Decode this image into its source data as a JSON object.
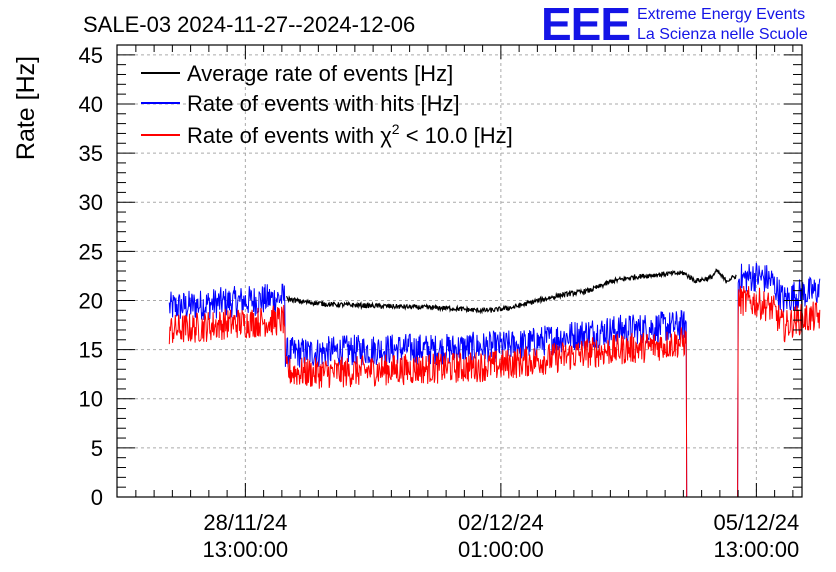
{
  "chart_data": {
    "type": "line",
    "title": "SALE-03 2024-11-27--2024-12-06",
    "ylabel": "Rate [Hz]",
    "xlabel": "",
    "ylim": [
      0,
      46
    ],
    "yticks": [
      0,
      5,
      10,
      15,
      20,
      25,
      30,
      35,
      40,
      45
    ],
    "x_unit": "hours since 2024-11-27 00:00",
    "xlim": [
      -5.2,
      220
    ],
    "xticks": [
      {
        "x": 37,
        "line1": "28/11/24",
        "line2": "13:00:00"
      },
      {
        "x": 121,
        "line1": "02/12/24",
        "line2": "01:00:00"
      },
      {
        "x": 205,
        "line1": "05/12/24",
        "line2": "13:00:00"
      }
    ],
    "grid": true,
    "legend": [
      {
        "label": "Average rate of events [Hz]",
        "color": "#000000"
      },
      {
        "label": "Rate of events with hits [Hz]",
        "color": "#0000ff"
      },
      {
        "label_prefix": "Rate of events with ",
        "label_symbol": "χ",
        "label_sup": "2",
        "label_suffix": " < 10.0 [Hz]",
        "color": "#ff0000"
      }
    ],
    "series": [
      {
        "name": "Average rate of events [Hz]",
        "color": "#000000",
        "noise": 0.25,
        "points": [
          [
            50.5,
            20.2
          ],
          [
            55,
            19.9
          ],
          [
            65,
            19.6
          ],
          [
            75,
            19.5
          ],
          [
            85,
            19.4
          ],
          [
            95,
            19.3
          ],
          [
            105,
            19.2
          ],
          [
            113,
            19.0
          ],
          [
            118,
            19.0
          ],
          [
            125,
            19.3
          ],
          [
            132,
            19.9
          ],
          [
            140,
            20.5
          ],
          [
            150,
            21.0
          ],
          [
            158,
            22.0
          ],
          [
            165,
            22.4
          ],
          [
            175,
            22.7
          ],
          [
            181,
            22.8
          ],
          [
            185,
            22.0
          ],
          [
            190,
            22.3
          ],
          [
            192,
            23.0
          ],
          [
            195,
            22.0
          ],
          [
            198.5,
            22.5
          ]
        ]
      },
      {
        "name": "Rate of events with hits [Hz]",
        "color": "#0000ff",
        "noise": 1.6,
        "points": [
          [
            12,
            19.3
          ],
          [
            20,
            19.5
          ],
          [
            30,
            19.8
          ],
          [
            40,
            20.0
          ],
          [
            50,
            20.3
          ],
          [
            50.5,
            14.7
          ],
          [
            60,
            14.7
          ],
          [
            70,
            14.9
          ],
          [
            80,
            15.0
          ],
          [
            90,
            15.1
          ],
          [
            100,
            15.0
          ],
          [
            110,
            15.2
          ],
          [
            120,
            15.3
          ],
          [
            130,
            15.6
          ],
          [
            140,
            16.2
          ],
          [
            150,
            16.7
          ],
          [
            160,
            17.0
          ],
          [
            170,
            17.2
          ],
          [
            182,
            17.5
          ],
          [
            182.5,
            0
          ],
          [
            199,
            0
          ],
          [
            199.5,
            22.2
          ],
          [
            205,
            22.5
          ],
          [
            210,
            22.0
          ],
          [
            214,
            20.0
          ],
          [
            218,
            20.6
          ],
          [
            226,
            21.0
          ]
        ]
      },
      {
        "name": "Rate of events with χ2 < 10.0 [Hz]",
        "color": "#ff0000",
        "noise": 1.6,
        "points": [
          [
            12,
            17.0
          ],
          [
            20,
            17.2
          ],
          [
            30,
            17.6
          ],
          [
            40,
            17.8
          ],
          [
            50,
            18.0
          ],
          [
            50.5,
            12.8
          ],
          [
            60,
            12.6
          ],
          [
            70,
            12.7
          ],
          [
            80,
            12.9
          ],
          [
            90,
            13.0
          ],
          [
            100,
            13.1
          ],
          [
            110,
            13.2
          ],
          [
            120,
            13.4
          ],
          [
            130,
            13.8
          ],
          [
            140,
            14.2
          ],
          [
            150,
            14.7
          ],
          [
            160,
            15.0
          ],
          [
            170,
            15.3
          ],
          [
            182,
            15.8
          ],
          [
            182.5,
            0
          ],
          [
            199,
            0
          ],
          [
            199.5,
            20.0
          ],
          [
            205,
            19.8
          ],
          [
            210,
            19.3
          ],
          [
            214,
            17.3
          ],
          [
            218,
            18.0
          ],
          [
            226,
            18.4
          ]
        ]
      }
    ]
  },
  "logo": {
    "letters": "EEE",
    "line1": "Extreme Energy Events",
    "line2": "La Scienza nelle Scuole"
  }
}
